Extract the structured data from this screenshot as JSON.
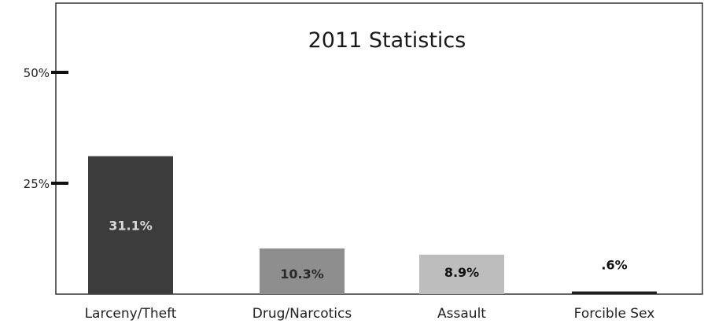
{
  "chart_data": {
    "type": "bar",
    "title": "2011 Statistics",
    "xlabel": "",
    "ylabel": "",
    "categories": [
      "Larceny/Theft",
      "Drug/Narcotics",
      "Assault",
      "Forcible Sex"
    ],
    "values": [
      31.1,
      10.3,
      8.9,
      0.6
    ],
    "data_labels": [
      "31.1%",
      "10.3%",
      "8.9%",
      ".6%"
    ],
    "bar_colors": [
      "#3c3c3c",
      "#8e8e8e",
      "#bdbdbd",
      "#1e1e1e"
    ],
    "data_label_colors": [
      "#d8d8d8",
      "#2a2a2a",
      "#111111",
      "#111111"
    ],
    "yticks": [
      {
        "value": 25,
        "label": "25%"
      },
      {
        "value": 50,
        "label": "50%"
      }
    ],
    "ylim": [
      0,
      50
    ],
    "grid": false,
    "legend": "none"
  }
}
